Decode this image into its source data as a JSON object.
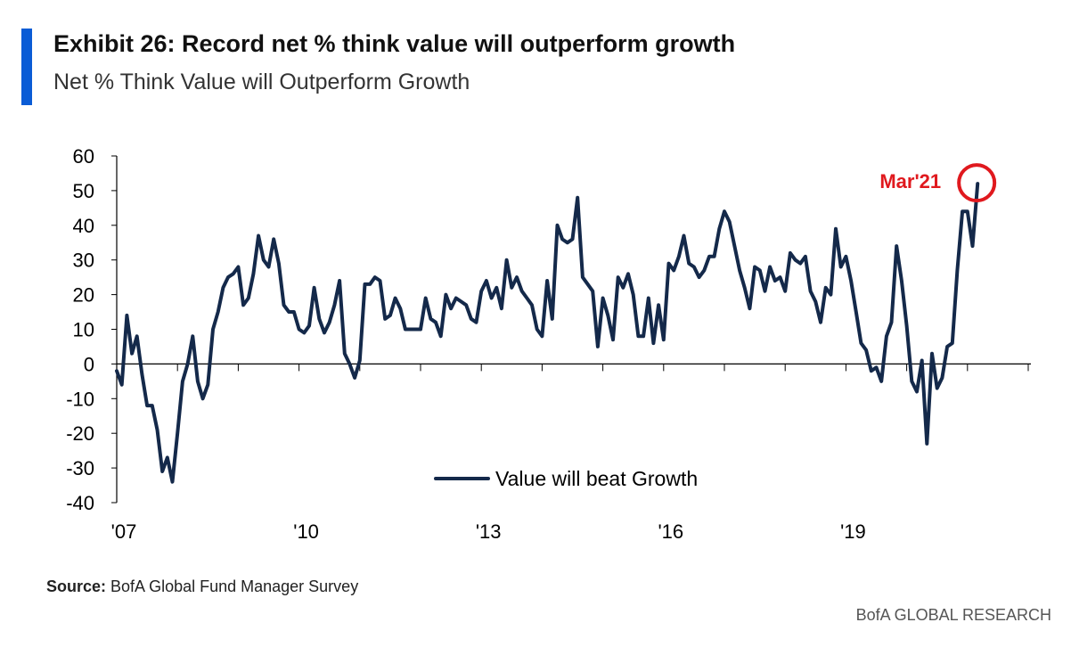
{
  "header": {
    "title": "Exhibit 26: Record net % think value will outperform growth",
    "subtitle": "Net % Think Value will Outperform Growth",
    "accent_color": "#0a5cd6"
  },
  "footer": {
    "source_label": "Source:",
    "source_text": " BofA Global Fund Manager Survey",
    "brand": "BofA GLOBAL RESEARCH"
  },
  "chart_data": {
    "type": "line",
    "title": "Net % Think Value will Outperform Growth",
    "xlabel": "",
    "ylabel": "",
    "ylim": [
      -40,
      60
    ],
    "yticks": [
      60,
      50,
      40,
      30,
      20,
      10,
      0,
      -10,
      -20,
      -30,
      -40
    ],
    "xlim_months": [
      0,
      180
    ],
    "xticks": [
      {
        "label": "'07",
        "month": 0
      },
      {
        "label": "'10",
        "month": 36
      },
      {
        "label": "'13",
        "month": 72
      },
      {
        "label": "'16",
        "month": 108
      },
      {
        "label": "'19",
        "month": 144
      }
    ],
    "x_start": "Jan 2007",
    "x_end": "Mar 2021",
    "grid": false,
    "series": [
      {
        "name": "Value will beat Growth",
        "color": "#14294a",
        "values": [
          -2,
          -6,
          14,
          3,
          8,
          -3,
          -12,
          -12,
          -19,
          -31,
          -27,
          -34,
          -20,
          -5,
          0,
          8,
          -5,
          -10,
          -6,
          10,
          15,
          22,
          25,
          26,
          28,
          17,
          19,
          26,
          37,
          30,
          28,
          36,
          29,
          17,
          15,
          15,
          10,
          9,
          11,
          22,
          13,
          9,
          12,
          17,
          24,
          3,
          0,
          -4,
          1,
          23,
          23,
          25,
          24,
          13,
          14,
          19,
          16,
          10,
          10,
          10,
          10,
          19,
          13,
          12,
          8,
          20,
          16,
          19,
          18,
          17,
          13,
          12,
          21,
          24,
          19,
          22,
          16,
          30,
          22,
          25,
          21,
          19,
          17,
          10,
          8,
          24,
          13,
          40,
          36,
          35,
          36,
          48,
          25,
          23,
          21,
          5,
          19,
          14,
          7,
          25,
          22,
          26,
          20,
          8,
          8,
          19,
          6,
          17,
          7,
          29,
          27,
          31,
          37,
          29,
          28,
          25,
          27,
          31,
          31,
          39,
          44,
          41,
          34,
          27,
          22,
          16,
          28,
          27,
          21,
          28,
          24,
          25,
          21,
          32,
          30,
          29,
          31,
          21,
          18,
          12,
          22,
          20,
          39,
          28,
          31,
          24,
          15,
          6,
          4,
          -2,
          -1,
          -5,
          8,
          12,
          34,
          24,
          11,
          -5,
          -8,
          1,
          -23,
          3,
          -7,
          -4,
          5,
          6,
          27,
          44,
          44,
          34,
          52
        ]
      }
    ],
    "legend": {
      "entry": "Value will beat Growth",
      "position": "bottom-center"
    },
    "annotation": {
      "text": "Mar'21",
      "color": "#e0191e",
      "target_month": 170
    }
  }
}
